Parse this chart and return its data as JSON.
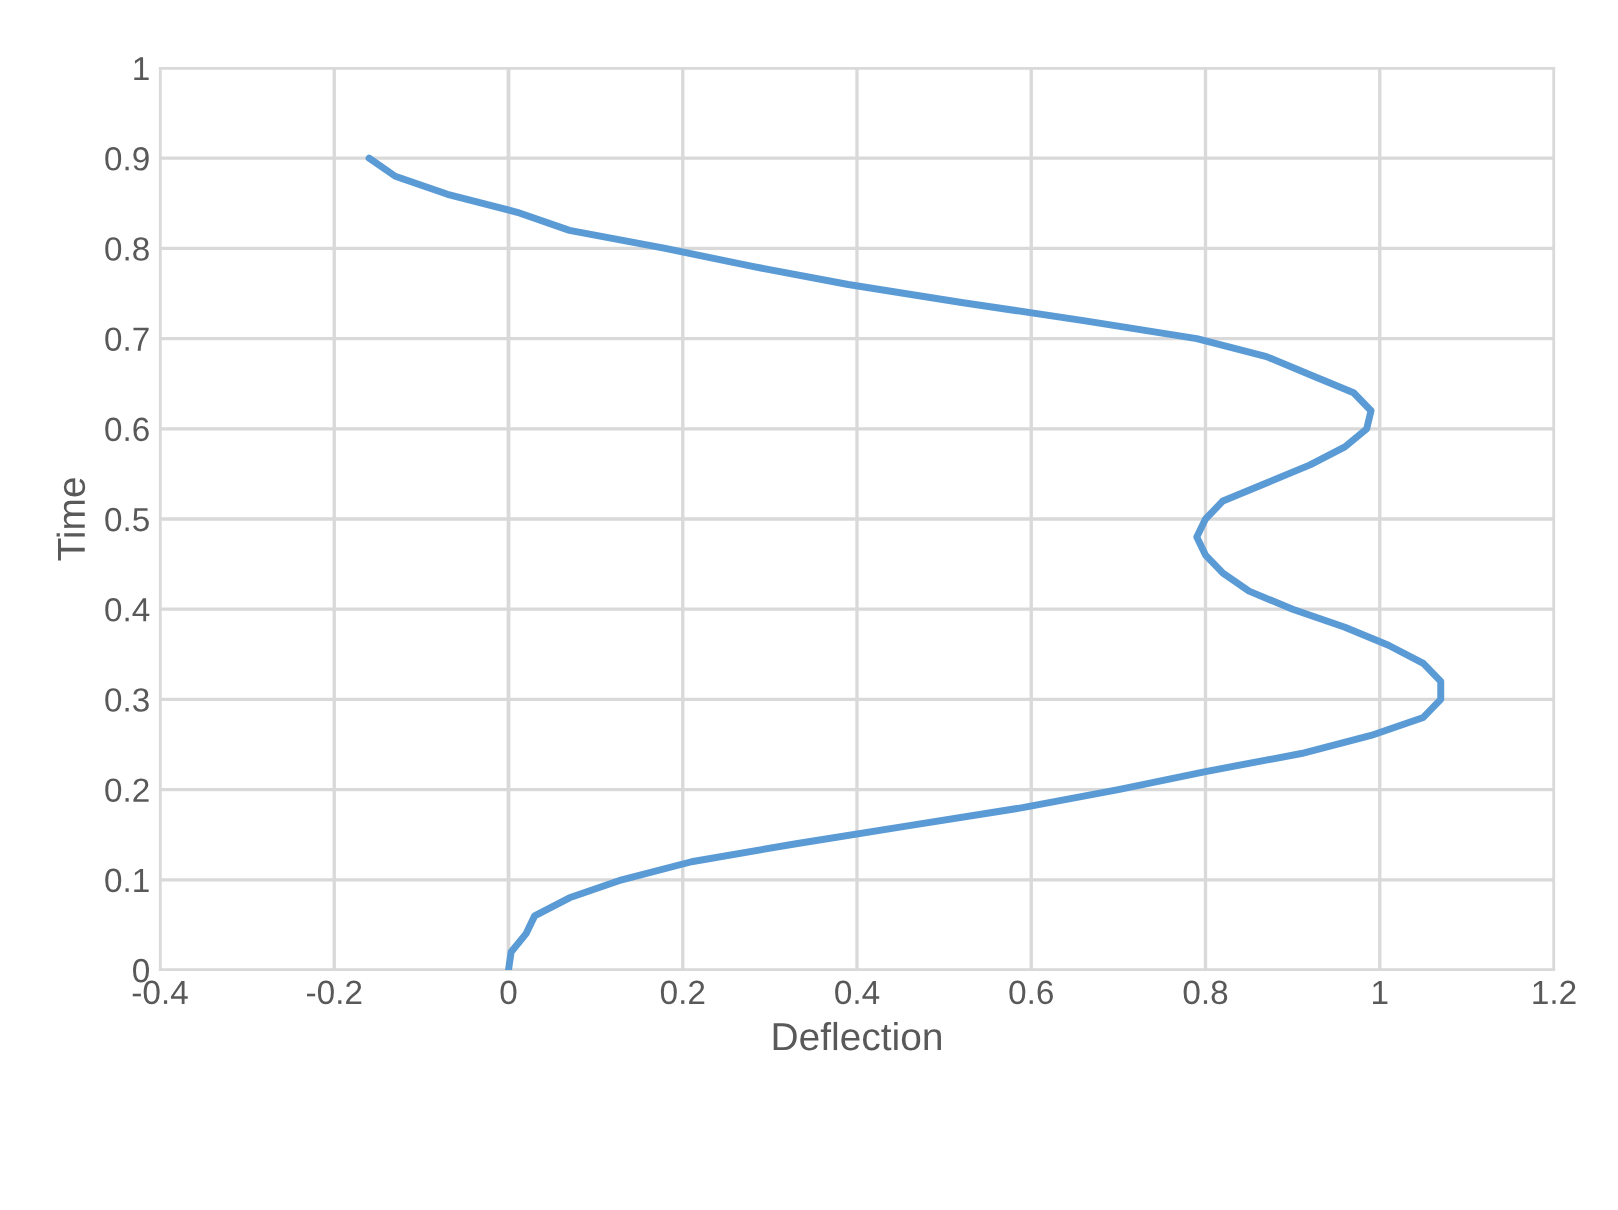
{
  "chart_data": {
    "type": "line",
    "xlabel": "Deflection",
    "ylabel": "Time",
    "xlim": [
      -0.4,
      1.2
    ],
    "xticks": [
      -0.4,
      -0.2,
      0,
      0.2,
      0.4,
      0.6,
      0.8,
      1,
      1.2
    ],
    "ylim": [
      0,
      1
    ],
    "yticks": [
      0,
      0.1,
      0.2,
      0.3,
      0.4,
      0.5,
      0.6,
      0.7,
      0.8,
      0.9,
      1
    ],
    "grid": true,
    "legend": false,
    "marker": "none",
    "line_style": "solid",
    "series": [
      {
        "color": "#5b9bd5",
        "x": [
          0,
          0.003,
          0.02,
          0.03,
          0.07,
          0.13,
          0.21,
          0.33,
          0.46,
          0.59,
          0.7,
          0.8,
          0.91,
          0.99,
          1.05,
          1.07,
          1.07,
          1.05,
          1.01,
          0.96,
          0.9,
          0.85,
          0.82,
          0.8,
          0.79,
          0.8,
          0.82,
          0.87,
          0.92,
          0.96,
          0.985,
          0.99,
          0.97,
          0.92,
          0.87,
          0.79,
          0.66,
          0.52,
          0.39,
          0.28,
          0.18,
          0.07,
          0.01,
          -0.07,
          -0.13,
          -0.16
        ],
        "values": [
          0,
          0.02,
          0.04,
          0.06,
          0.08,
          0.1,
          0.12,
          0.14,
          0.16,
          0.18,
          0.2,
          0.22,
          0.24,
          0.26,
          0.28,
          0.3,
          0.32,
          0.34,
          0.36,
          0.38,
          0.4,
          0.42,
          0.44,
          0.46,
          0.48,
          0.5,
          0.52,
          0.54,
          0.56,
          0.58,
          0.6,
          0.62,
          0.64,
          0.66,
          0.68,
          0.7,
          0.72,
          0.74,
          0.76,
          0.78,
          0.8,
          0.82,
          0.84,
          0.86,
          0.88,
          0.9
        ]
      }
    ]
  }
}
